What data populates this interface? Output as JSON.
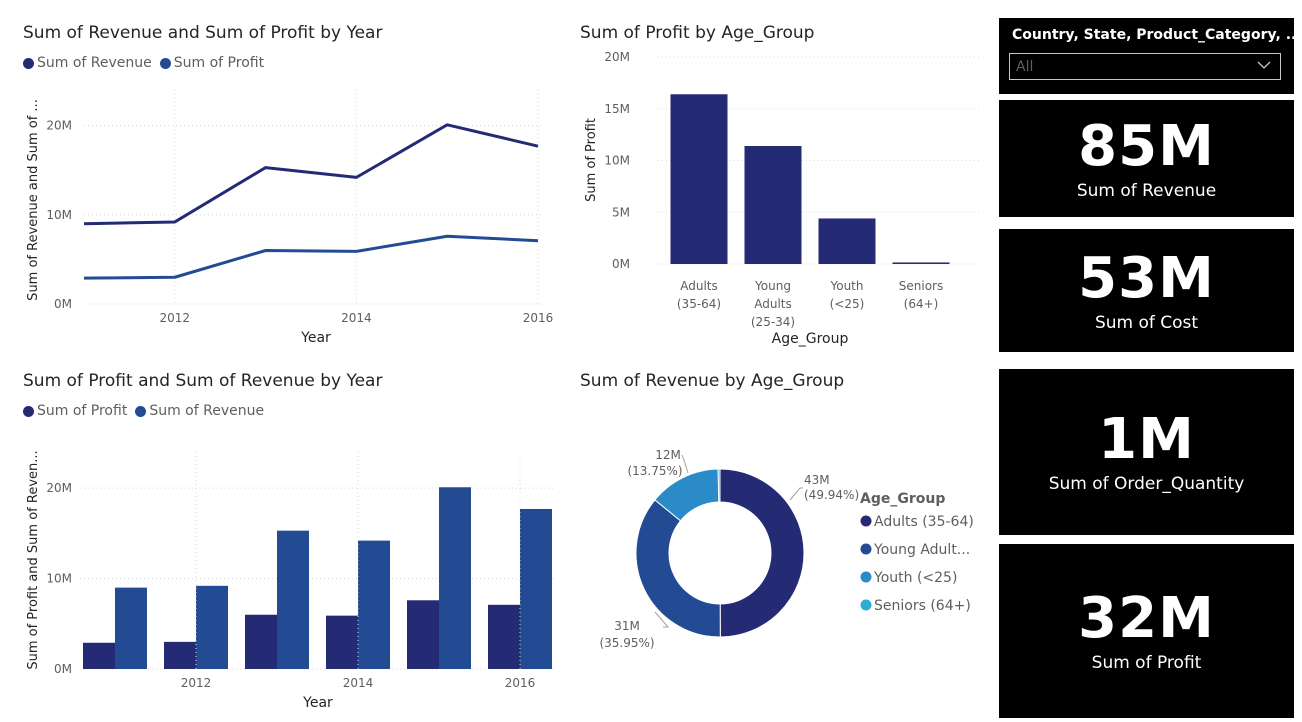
{
  "colors": {
    "dark_navy": "#252a75",
    "blue": "#234b93",
    "mid_blue": "#2b8bc9",
    "light_blue": "#2dadd6",
    "text": "#252423",
    "muted": "#605e5c",
    "grid": "#d8d8d8"
  },
  "slicer": {
    "title": "Country, State, Product_Category, ...",
    "value": "All",
    "icon": "chevron-down-icon"
  },
  "cards": [
    {
      "value": "85M",
      "label": "Sum of Revenue"
    },
    {
      "value": "53M",
      "label": "Sum of Cost"
    },
    {
      "value": "1M",
      "label": "Sum of Order_Quantity"
    },
    {
      "value": "32M",
      "label": "Sum of Profit"
    }
  ],
  "chart_data": [
    {
      "type": "line",
      "title": "Sum of Revenue and Sum of Profit by Year",
      "xlabel": "Year",
      "ylabel": "Sum of Revenue and Sum of ...",
      "x": [
        2011,
        2012,
        2013,
        2014,
        2015,
        2016
      ],
      "x_ticks": [
        "2012",
        "2014",
        "2016"
      ],
      "y_ticks": [
        "0M",
        "10M",
        "20M"
      ],
      "ylim": [
        0,
        24
      ],
      "series": [
        {
          "name": "Sum of Revenue",
          "color": "#252a75",
          "values": [
            9.0,
            9.2,
            15.3,
            14.2,
            20.1,
            17.7
          ]
        },
        {
          "name": "Sum of Profit",
          "color": "#234b93",
          "values": [
            2.9,
            3.0,
            6.0,
            5.9,
            7.6,
            7.1
          ]
        }
      ],
      "legend": "top-left",
      "grid": true
    },
    {
      "type": "bar",
      "title": "Sum of Profit by Age_Group",
      "xlabel": "Age_Group",
      "ylabel": "Sum of Profit",
      "categories": [
        "Adults (35-64)",
        "Young Adults (25-34)",
        "Youth (<25)",
        "Seniors (64+)"
      ],
      "category_lines": [
        [
          "Adults",
          "(35-64)"
        ],
        [
          "Young",
          "Adults",
          "(25-34)"
        ],
        [
          "Youth",
          "(<25)"
        ],
        [
          "Seniors",
          "(64+)"
        ]
      ],
      "values": [
        16.4,
        11.4,
        4.4,
        0.15
      ],
      "y_ticks": [
        "0M",
        "5M",
        "10M",
        "15M",
        "20M"
      ],
      "ylim": [
        0,
        20
      ],
      "color": "#252a75",
      "grid": true
    },
    {
      "type": "bar",
      "title": "Sum of Profit and Sum of Revenue by Year",
      "xlabel": "Year",
      "ylabel": "Sum of Profit and Sum of Reven...",
      "x": [
        2011,
        2012,
        2013,
        2014,
        2015,
        2016
      ],
      "x_ticks": [
        "2012",
        "2014",
        "2016"
      ],
      "y_ticks": [
        "0M",
        "10M",
        "20M"
      ],
      "ylim": [
        0,
        24
      ],
      "series": [
        {
          "name": "Sum of Profit",
          "color": "#252a75",
          "values": [
            2.9,
            3.0,
            6.0,
            5.9,
            7.6,
            7.1
          ]
        },
        {
          "name": "Sum of Revenue",
          "color": "#234b93",
          "values": [
            9.0,
            9.2,
            15.3,
            14.2,
            20.1,
            17.7
          ]
        }
      ],
      "legend": "top-left",
      "grid": true
    },
    {
      "type": "pie",
      "title": "Sum of Revenue by Age_Group",
      "legend_title": "Age_Group",
      "legend_labels": [
        "Adults (35-64)",
        "Young Adult...",
        "Youth (<25)",
        "Seniors (64+)"
      ],
      "slices": [
        {
          "name": "Adults (35-64)",
          "value": 49.94,
          "color": "#252a75"
        },
        {
          "name": "Young Adults (25-34)",
          "value": 35.95,
          "color": "#234b93"
        },
        {
          "name": "Youth (<25)",
          "value": 13.75,
          "color": "#2b8bc9"
        },
        {
          "name": "Seniors (64+)",
          "value": 0.36,
          "color": "#2dadd6"
        }
      ],
      "data_labels": [
        {
          "value": "43M",
          "percent": "(49.94%)"
        },
        {
          "value": "31M",
          "percent": "(35.95%)"
        },
        {
          "value": "12M",
          "percent": "(13.75%)"
        }
      ],
      "donut": true,
      "legend": "right"
    }
  ]
}
